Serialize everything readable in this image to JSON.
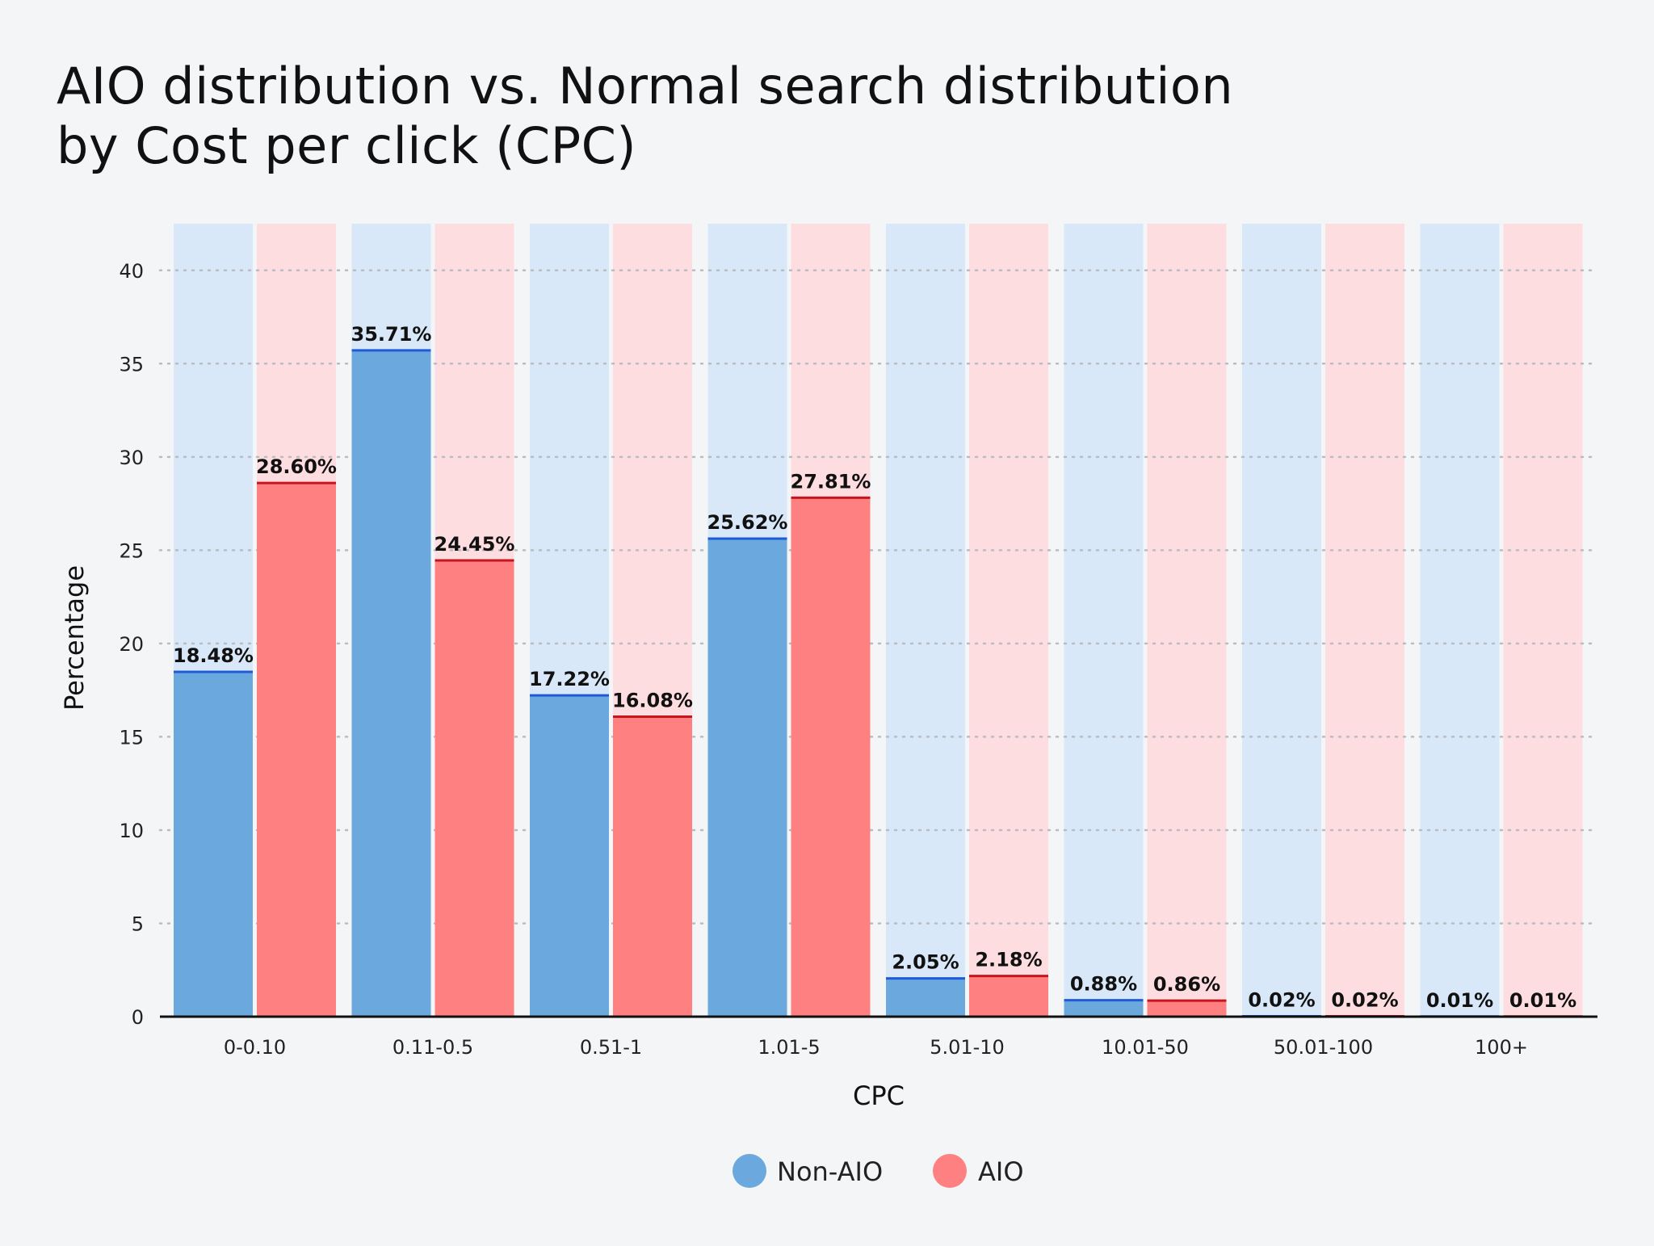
{
  "chart_data": {
    "type": "bar",
    "title_line1": "AIO distribution vs. Normal search distribution",
    "title_line2": "by Cost per click (CPC)",
    "xlabel": "CPC",
    "ylabel": "Percentage",
    "ylim": [
      0,
      42.5
    ],
    "yticks": [
      0,
      5,
      10,
      15,
      20,
      25,
      30,
      35,
      40
    ],
    "grid": "horizontal dotted",
    "legend_position": "bottom-center",
    "categories": [
      "0-0.10",
      "0.11-0.5",
      "0.51-1",
      "1.01-5",
      "5.01-10",
      "10.01-50",
      "50.01-100",
      "100+"
    ],
    "series": [
      {
        "name": "Non-AIO",
        "color": "#6aa8de",
        "edge_color": "#1f5bd6",
        "background_color": "#d9e8f8",
        "values": [
          18.48,
          35.71,
          17.22,
          25.62,
          2.05,
          0.88,
          0.02,
          0.01
        ],
        "labels": [
          "18.48%",
          "35.71%",
          "17.22%",
          "25.62%",
          "2.05%",
          "0.88%",
          "0.02%",
          "0.01%"
        ]
      },
      {
        "name": "AIO",
        "color": "#fe8080",
        "edge_color": "#c8141e",
        "background_color": "#fddde0",
        "values": [
          28.6,
          24.45,
          16.08,
          27.81,
          2.18,
          0.86,
          0.02,
          0.01
        ],
        "labels": [
          "28.60%",
          "24.45%",
          "16.08%",
          "27.81%",
          "2.18%",
          "0.86%",
          "0.02%",
          "0.01%"
        ]
      }
    ]
  }
}
